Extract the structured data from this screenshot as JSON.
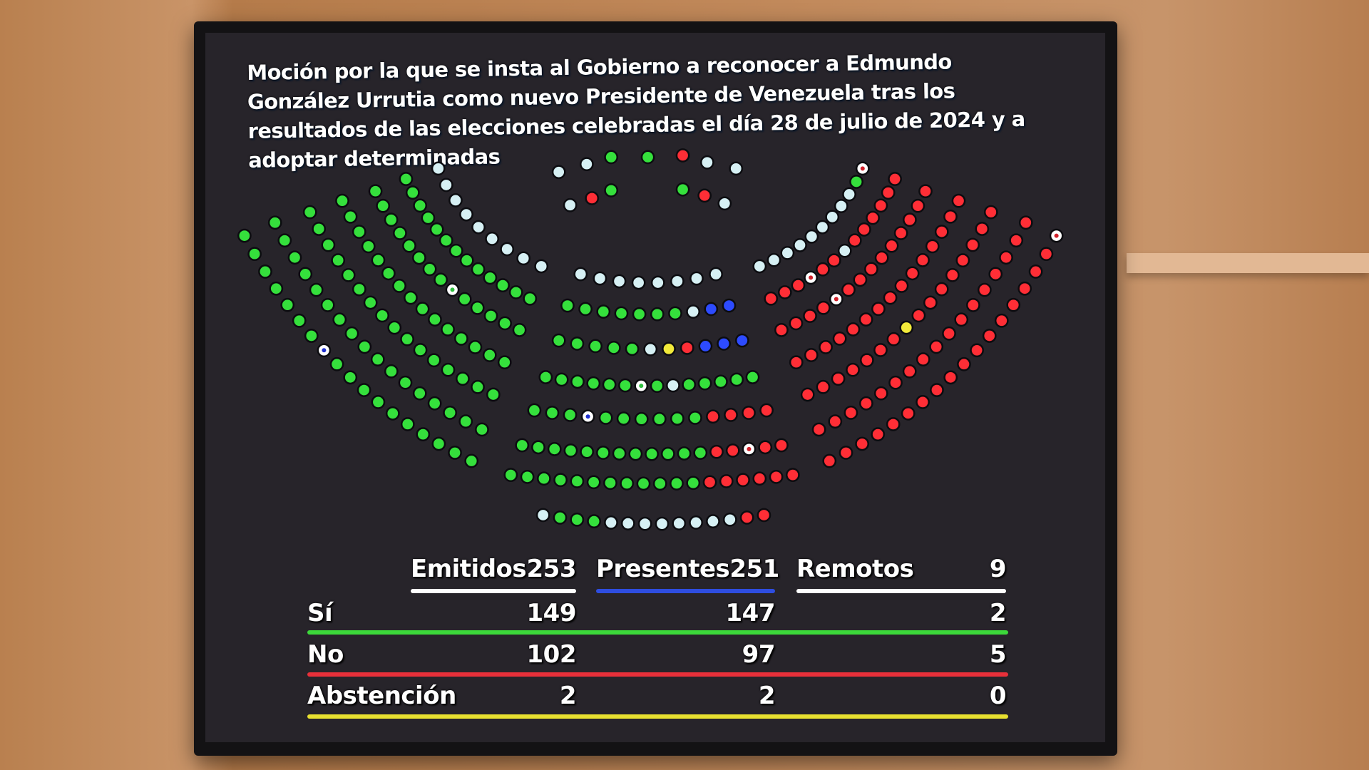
{
  "title": "Moción por la que se insta al Gobierno a reconocer a Edmundo González Urrutia como nuevo Presidente de Venezuela tras los resultados de las elecciones celebradas el día 28 de julio de 2024 y a adoptar determinadas",
  "colors": {
    "G": "#35e03c",
    "R": "#ff2e36",
    "W": "#d6f0f4",
    "B": "#2d4bff",
    "Y": "#f2ea3a",
    "X": "#ffffff",
    "Z": "#ffffff",
    "Q": "#ffffff",
    "yes_line": "#3cd83a",
    "no_line": "#e8303a",
    "abst_line": "#e8e030",
    "presentes_line": "#2e4de0",
    "header_line": "#ffffff"
  },
  "seat_legend": {
    "G": "Sí",
    "R": "No",
    "Y": "Abstención",
    "W": "remote/empty",
    "B": "blue",
    "X": "white-red-center",
    "Z": "white-blue-center",
    "Q": "white-green-center"
  },
  "hemicycle": {
    "top_group": [
      "WWGGRWW",
      "WRG",
      "GRW"
    ],
    "left_wing": [
      "GGGGGGGZGGGGGGGGGG",
      "GGGGGGGGGGGGGGGGG",
      "GGGGGGGGGGGGGGGG",
      "GGGGGGGGGGGGGGG",
      "GGGGGGGGQGGGGG",
      "GGGGGGGGGGGGG",
      "WWWWWWWWW"
    ],
    "center": [
      "WWWWWWWW",
      "GGGGGGGWBB",
      "GGGGGWYRBBB",
      "GGGGGGQGWGGGGG",
      "GGGZGGGGGGRRRR",
      "GGGGGGGGGGGGRRXRR",
      "GGGGGGGGGGGGRRRRRR",
      "WGGGWWWWWWWWRR"
    ],
    "right_wing": [
      "RRRRRRRRRRRRRRRRRX",
      "RRRRRRRRRRRRRRRRR",
      "RRRRRRRYRRRRRRRR",
      "RRRRRRRRRRRRRRR",
      "RRRRXRRRRRRRRR",
      "RRRXRRWRRRRRR",
      "WWWWWWWWWGX"
    ]
  },
  "results": {
    "headers": [
      {
        "label": "Emitidos",
        "value": "253"
      },
      {
        "label": "Presentes",
        "value": "251"
      },
      {
        "label": "Remotos",
        "value": "9"
      }
    ],
    "rows": [
      {
        "label": "Sí",
        "emitidos": "149",
        "presentes": "147",
        "remotos": "2"
      },
      {
        "label": "No",
        "emitidos": "102",
        "presentes": "97",
        "remotos": "5"
      },
      {
        "label": "Abstención",
        "emitidos": "2",
        "presentes": "2",
        "remotos": "0"
      }
    ]
  }
}
